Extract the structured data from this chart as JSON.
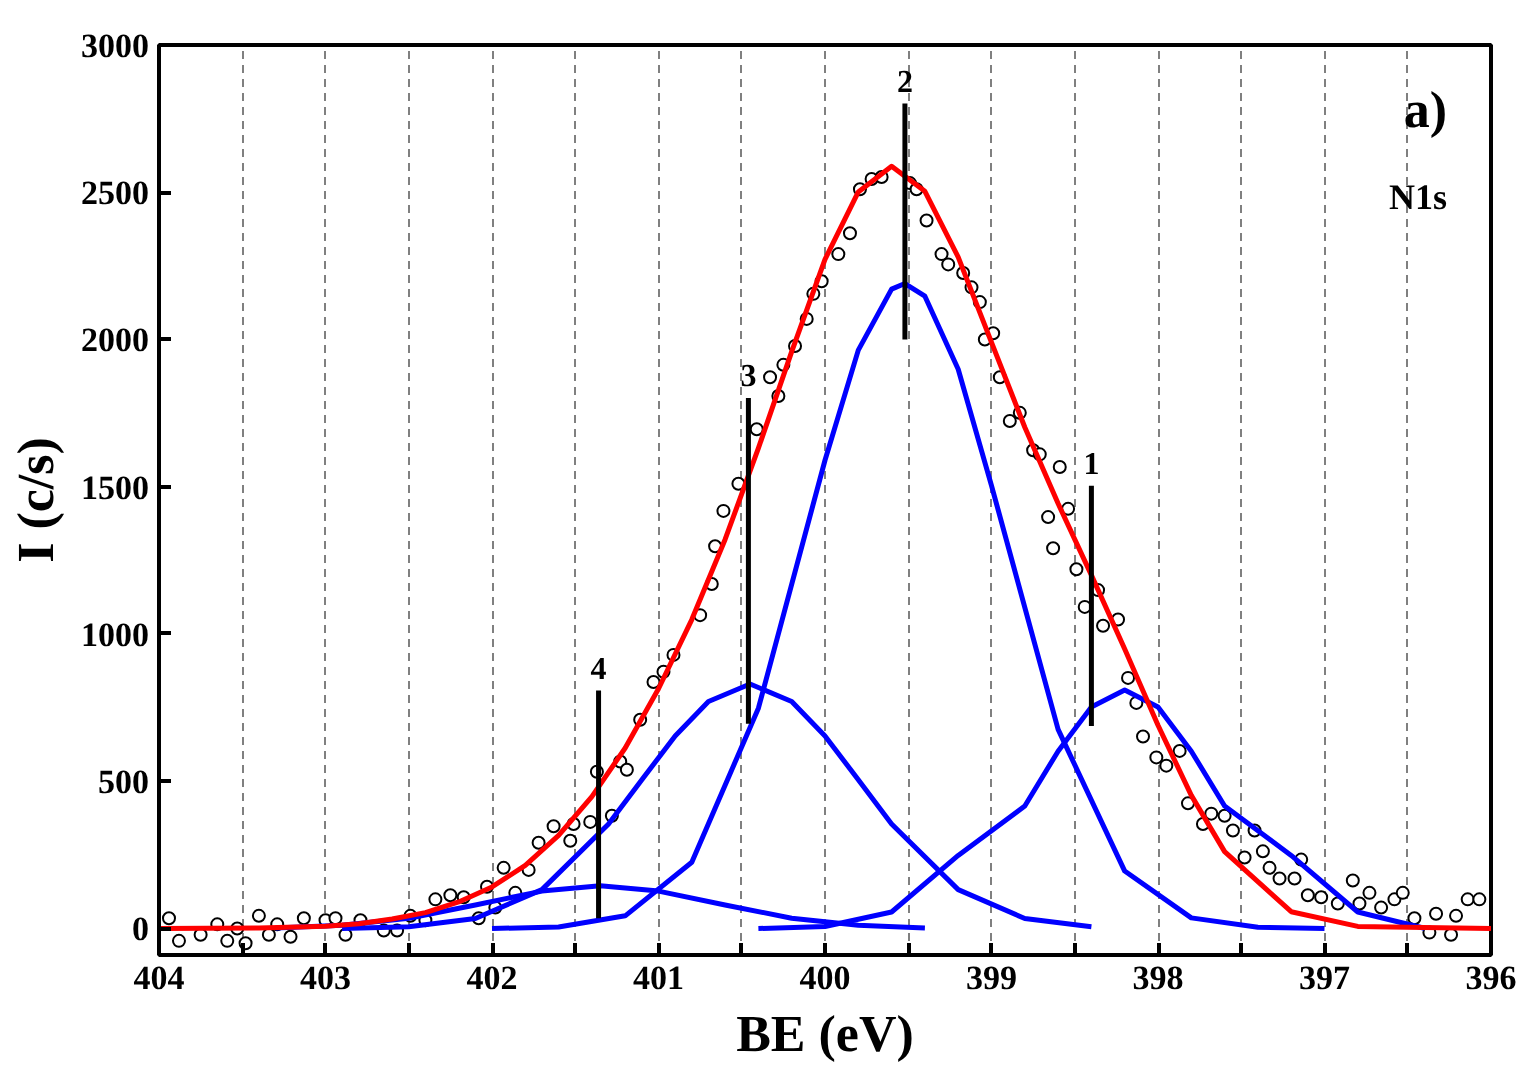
{
  "chart_data": {
    "type": "line",
    "xlabel": "BE (eV)",
    "ylabel": "I (c/s)",
    "xlim": [
      404,
      396
    ],
    "ylim": [
      -90,
      3000
    ],
    "xticks": [
      404,
      {
        "value": 403.5,
        "label": null
      },
      403,
      {
        "value": 402.5,
        "label": null
      },
      402,
      {
        "value": 401.5,
        "label": null
      },
      401,
      {
        "value": 400.5,
        "label": null
      },
      400,
      {
        "value": 399.5,
        "label": null
      },
      399,
      {
        "value": 398.5,
        "label": null
      },
      398,
      {
        "value": 397.5,
        "label": null
      },
      397,
      {
        "value": 396.5,
        "label": null
      },
      396
    ],
    "yticks": [
      0,
      500,
      1000,
      1500,
      2000,
      2500,
      3000
    ],
    "grid": "x",
    "annotations": [
      "a)",
      "N1s",
      {
        "text": "1",
        "x": 398.4,
        "y": 1503
      },
      {
        "text": "2",
        "x": 399.52,
        "y": 2801
      },
      {
        "text": "3",
        "x": 400.46,
        "y": 1801
      },
      {
        "text": "4",
        "x": 401.36,
        "y": 808
      }
    ],
    "series": [
      {
        "type": "scatter",
        "marker": "circle",
        "color": "#000000",
        "x": [
          403.94,
          403.88,
          403.75,
          403.65,
          403.59,
          403.53,
          403.48,
          403.4,
          403.34,
          403.29,
          403.21,
          403.13,
          403.0,
          402.94,
          402.88,
          402.79,
          402.65,
          402.57,
          402.49,
          402.4,
          402.34,
          402.25,
          402.17,
          402.08,
          402.03,
          401.98,
          401.93,
          401.86,
          401.78,
          401.72,
          401.63,
          401.53,
          401.51,
          401.41,
          401.37,
          401.28,
          401.23,
          401.19,
          401.11,
          401.03,
          400.97,
          400.91,
          400.75,
          400.68,
          400.66,
          400.61,
          400.52,
          400.41,
          400.33,
          400.28,
          400.25,
          400.18,
          400.11,
          400.07,
          400.02,
          399.92,
          399.85,
          399.79,
          399.72,
          399.66,
          399.49,
          399.45,
          399.39,
          399.3,
          399.26,
          399.17,
          399.12,
          399.07,
          399.04,
          398.99,
          398.95,
          398.89,
          398.83,
          398.75,
          398.71,
          398.66,
          398.63,
          398.59,
          398.54,
          398.49,
          398.44,
          398.36,
          398.33,
          398.24,
          398.18,
          398.13,
          398.09,
          398.01,
          397.95,
          397.87,
          397.82,
          397.73,
          397.68,
          397.6,
          397.55,
          397.48,
          397.42,
          397.37,
          397.33,
          397.27,
          397.18,
          397.14,
          397.1,
          397.02,
          396.92,
          396.83,
          396.79,
          396.73,
          396.66,
          396.58,
          396.53,
          396.46,
          396.37,
          396.33,
          396.24,
          396.21,
          396.14,
          396.07
        ],
        "values": [
          35,
          -42,
          -21,
          14,
          -42,
          0,
          -50,
          43,
          -21,
          14,
          -28,
          35,
          28,
          35,
          -21,
          28,
          -7,
          -7,
          43,
          28,
          99,
          113,
          106,
          35,
          142,
          71,
          206,
          121,
          199,
          291,
          347,
          298,
          355,
          362,
          532,
          383,
          567,
          539,
          709,
          837,
          872,
          929,
          1064,
          1170,
          1298,
          1418,
          1510,
          1695,
          1872,
          1808,
          1914,
          1978,
          2070,
          2155,
          2198,
          2290,
          2361,
          2510,
          2545,
          2552,
          2531,
          2510,
          2404,
          2290,
          2255,
          2226,
          2177,
          2127,
          2000,
          2021,
          1872,
          1723,
          1751,
          1624,
          1610,
          1397,
          1291,
          1567,
          1425,
          1220,
          1092,
          1149,
          1028,
          1049,
          851,
          766,
          652,
          581,
          553,
          603,
          425,
          355,
          390,
          383,
          333,
          241,
          333,
          262,
          206,
          170,
          170,
          234,
          113,
          106,
          85,
          163,
          85,
          121,
          71,
          99,
          121,
          35,
          -14,
          50,
          -21,
          43,
          99,
          99
        ]
      },
      {
        "color": "#0000ff",
        "x": [
          400.4,
          400,
          399.6,
          399.2,
          398.8,
          398.6,
          398.4,
          398.2,
          398,
          397.8,
          397.6,
          397.2,
          396.8,
          396.4
        ],
        "values": [
          0,
          7,
          56,
          248,
          416,
          602,
          752,
          810,
          752,
          602,
          416,
          248,
          56,
          1
        ]
      },
      {
        "color": "#0000ff",
        "x": [
          402,
          401.6,
          401.2,
          400.8,
          400.4,
          400,
          399.8,
          399.6,
          399.52,
          399.4,
          399.2,
          399,
          398.6,
          398.2,
          397.8,
          397.4,
          397
        ],
        "values": [
          0,
          5,
          43,
          225,
          748,
          1590,
          1964,
          2171,
          2190,
          2147,
          1899,
          1504,
          676,
          195,
          36,
          4,
          0
        ]
      },
      {
        "color": "#0000ff",
        "x": [
          402.9,
          402.5,
          402.1,
          401.7,
          401.3,
          401.1,
          400.9,
          400.7,
          400.45,
          400.2,
          400,
          399.8,
          399.6,
          399.2,
          398.8,
          398.4
        ],
        "values": [
          0,
          6,
          34,
          132,
          355,
          505,
          654,
          771,
          830,
          771,
          654,
          505,
          355,
          132,
          34,
          6
        ]
      },
      {
        "color": "#0000ff",
        "x": [
          403.3,
          402.9,
          402.5,
          402.1,
          401.7,
          401.35,
          401,
          400.6,
          400.2,
          399.8,
          399.4
        ],
        "values": [
          2,
          11,
          35,
          80,
          127,
          145,
          127,
          80,
          35,
          11,
          2
        ]
      },
      {
        "color": "#ff0000",
        "x": [
          404,
          403.4,
          403,
          402.8,
          402.6,
          402.4,
          402.2,
          402,
          401.8,
          401.6,
          401.4,
          401.2,
          401,
          400.8,
          400.6,
          400.4,
          400.2,
          400,
          399.8,
          399.6,
          399.4,
          399.2,
          399,
          398.8,
          398.6,
          398.4,
          398.2,
          398,
          397.8,
          397.6,
          397.2,
          396.8,
          396
        ],
        "values": [
          0,
          2,
          8,
          16,
          32,
          54,
          90,
          141,
          214,
          316,
          448,
          613,
          814,
          1049,
          1321,
          1631,
          1959,
          2272,
          2501,
          2588,
          2503,
          2280,
          1990,
          1702,
          1443,
          1200,
          949,
          690,
          452,
          261,
          57,
          7,
          0
        ]
      },
      {
        "color": "#000000",
        "x": [
          398.4,
          398.4
        ],
        "values": [
          688,
          1503
        ]
      },
      {
        "color": "#000000",
        "x": [
          399.52,
          399.52
        ],
        "values": [
          2000,
          2801
        ]
      },
      {
        "color": "#000000",
        "x": [
          400.46,
          400.46
        ],
        "values": [
          695,
          1801
        ]
      },
      {
        "color": "#000000",
        "x": [
          401.36,
          401.36
        ],
        "values": [
          35,
          808
        ]
      }
    ]
  }
}
